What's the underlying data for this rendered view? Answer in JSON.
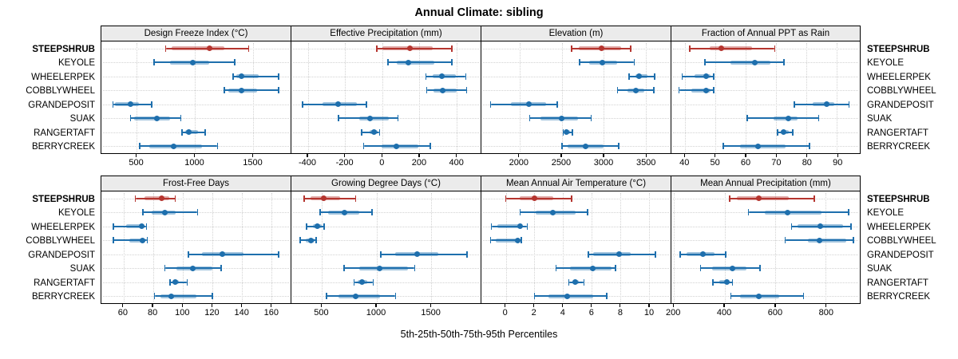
{
  "title": "Annual Climate: sibling",
  "xlabel": "5th-25th-50th-75th-95th Percentiles",
  "colors": {
    "highlight": "#b5352f",
    "normal": "#1e6fad",
    "strip_bg": "#ebebeb",
    "grid": "#d2d2d2",
    "border": "#000000"
  },
  "chart_data": {
    "type": "dotplot",
    "percentiles": [
      "5th",
      "25th",
      "50th",
      "75th",
      "95th"
    ],
    "rows": [
      "STEEPSHRUB",
      "KEYOLE",
      "WHEELERPEK",
      "COBBLYWHEEL",
      "GRANDEPOSIT",
      "SUAK",
      "RANGERTAFT",
      "BERRYCREEK"
    ],
    "highlight_row": "STEEPSHRUB",
    "legend_position": "none",
    "grid": "dotted",
    "panels": [
      {
        "title": "Design Freeze Index (°C)",
        "grid_row": 0,
        "ticks": [
          500,
          1000,
          1500
        ],
        "domain": [
          195,
          1825
        ],
        "series": [
          [
            750,
            800,
            1125,
            1255,
            1465
          ],
          [
            650,
            785,
            985,
            1125,
            1345
          ],
          [
            1330,
            1360,
            1400,
            1550,
            1720
          ],
          [
            1255,
            1290,
            1400,
            1535,
            1720
          ],
          [
            295,
            315,
            445,
            515,
            630
          ],
          [
            445,
            475,
            670,
            785,
            880
          ],
          [
            890,
            915,
            950,
            1025,
            1090
          ],
          [
            525,
            610,
            815,
            1060,
            1195
          ]
        ]
      },
      {
        "title": "Effective Precipitation (mm)",
        "grid_row": 0,
        "ticks": [
          -400,
          -200,
          0,
          200,
          400
        ],
        "domain": [
          -490,
          530
        ],
        "series": [
          [
            -30,
            0,
            150,
            270,
            375
          ],
          [
            30,
            80,
            140,
            280,
            375
          ],
          [
            235,
            270,
            320,
            395,
            450
          ],
          [
            240,
            275,
            325,
            400,
            455
          ],
          [
            -430,
            -320,
            -240,
            -135,
            -85
          ],
          [
            -235,
            -125,
            -65,
            35,
            85
          ],
          [
            -110,
            -70,
            -45,
            -25,
            -15
          ],
          [
            -100,
            -5,
            75,
            195,
            260
          ]
        ]
      },
      {
        "title": "Elevation (m)",
        "grid_row": 0,
        "ticks": [
          2000,
          2500,
          3000,
          3500
        ],
        "domain": [
          1550,
          3790
        ],
        "series": [
          [
            2620,
            2700,
            2975,
            3200,
            3315
          ],
          [
            2710,
            2830,
            2985,
            3160,
            3360
          ],
          [
            3300,
            3370,
            3420,
            3520,
            3600
          ],
          [
            3160,
            3280,
            3380,
            3480,
            3590
          ],
          [
            1660,
            1900,
            2110,
            2320,
            2450
          ],
          [
            2120,
            2250,
            2500,
            2690,
            2850
          ],
          [
            2520,
            2540,
            2560,
            2600,
            2630
          ],
          [
            2505,
            2570,
            2785,
            3000,
            3175
          ]
        ]
      },
      {
        "title": "Fraction of Annual PPT as Rain",
        "grid_row": 0,
        "ticks": [
          40,
          50,
          60,
          70,
          80,
          90
        ],
        "domain": [
          35.5,
          97.5
        ],
        "series": [
          [
            41.5,
            48,
            52,
            62,
            69.5
          ],
          [
            46.5,
            55,
            63,
            68,
            72.5
          ],
          [
            39,
            43,
            47,
            48.5,
            49.5
          ],
          [
            38,
            42,
            47,
            48.5,
            49.5
          ],
          [
            76,
            82,
            86.5,
            89,
            94
          ],
          [
            60.5,
            69,
            74,
            77,
            84
          ],
          [
            70.5,
            71.5,
            72.5,
            74,
            75.5
          ],
          [
            52.5,
            58,
            64,
            73,
            81
          ]
        ]
      },
      {
        "title": "Frost-Free Days",
        "grid_row": 1,
        "ticks": [
          60,
          80,
          100,
          120,
          140,
          160
        ],
        "domain": [
          45,
          173
        ],
        "series": [
          [
            68,
            74,
            86,
            91,
            95
          ],
          [
            73,
            79,
            88,
            95,
            110
          ],
          [
            53,
            62,
            72.5,
            74,
            75.5
          ],
          [
            53,
            64,
            73,
            74.5,
            76
          ],
          [
            104,
            113,
            127,
            141,
            165
          ],
          [
            88,
            96,
            107,
            120,
            126
          ],
          [
            91.5,
            93,
            95,
            97.5,
            103
          ],
          [
            81,
            85,
            92,
            109,
            120
          ]
        ]
      },
      {
        "title": "Growing Degree Days (°C)",
        "grid_row": 1,
        "ticks": [
          500,
          1000,
          1500
        ],
        "domain": [
          220,
          1955
        ],
        "series": [
          [
            335,
            395,
            520,
            670,
            810
          ],
          [
            485,
            560,
            705,
            840,
            960
          ],
          [
            360,
            420,
            455,
            500,
            520
          ],
          [
            300,
            350,
            400,
            430,
            445
          ],
          [
            1040,
            1175,
            1370,
            1570,
            1830
          ],
          [
            705,
            840,
            1030,
            1290,
            1350
          ],
          [
            795,
            830,
            865,
            915,
            970
          ],
          [
            540,
            650,
            810,
            1030,
            1175
          ]
        ]
      },
      {
        "title": "Mean Annual Air Temperature (°C)",
        "grid_row": 1,
        "ticks": [
          0,
          2,
          4,
          6,
          8,
          10
        ],
        "domain": [
          -1.7,
          11.5
        ],
        "series": [
          [
            0,
            1,
            2,
            3.3,
            4.6
          ],
          [
            1,
            2.1,
            3.3,
            4.9,
            5.7
          ],
          [
            -1,
            -0.6,
            1,
            1.15,
            1.5
          ],
          [
            -1.05,
            -0.7,
            0.85,
            1.0,
            1.1
          ],
          [
            5.75,
            6.1,
            7.9,
            8.7,
            10.45
          ],
          [
            3.5,
            4.5,
            6.05,
            7.4,
            7.65
          ],
          [
            4.4,
            4.65,
            4.85,
            5.1,
            5.45
          ],
          [
            2,
            3,
            4.3,
            6.1,
            7.05
          ]
        ]
      },
      {
        "title": "Mean Annual Precipitation (mm)",
        "grid_row": 1,
        "ticks": [
          200,
          400,
          600,
          800
        ],
        "domain": [
          190,
          935
        ],
        "series": [
          [
            420,
            450,
            535,
            655,
            755
          ],
          [
            495,
            560,
            650,
            785,
            890
          ],
          [
            665,
            690,
            778,
            870,
            900
          ],
          [
            640,
            730,
            775,
            880,
            910
          ],
          [
            225,
            250,
            315,
            360,
            405
          ],
          [
            305,
            350,
            433,
            487,
            540
          ],
          [
            355,
            380,
            410,
            422,
            432
          ],
          [
            425,
            460,
            535,
            615,
            713
          ]
        ]
      }
    ]
  }
}
